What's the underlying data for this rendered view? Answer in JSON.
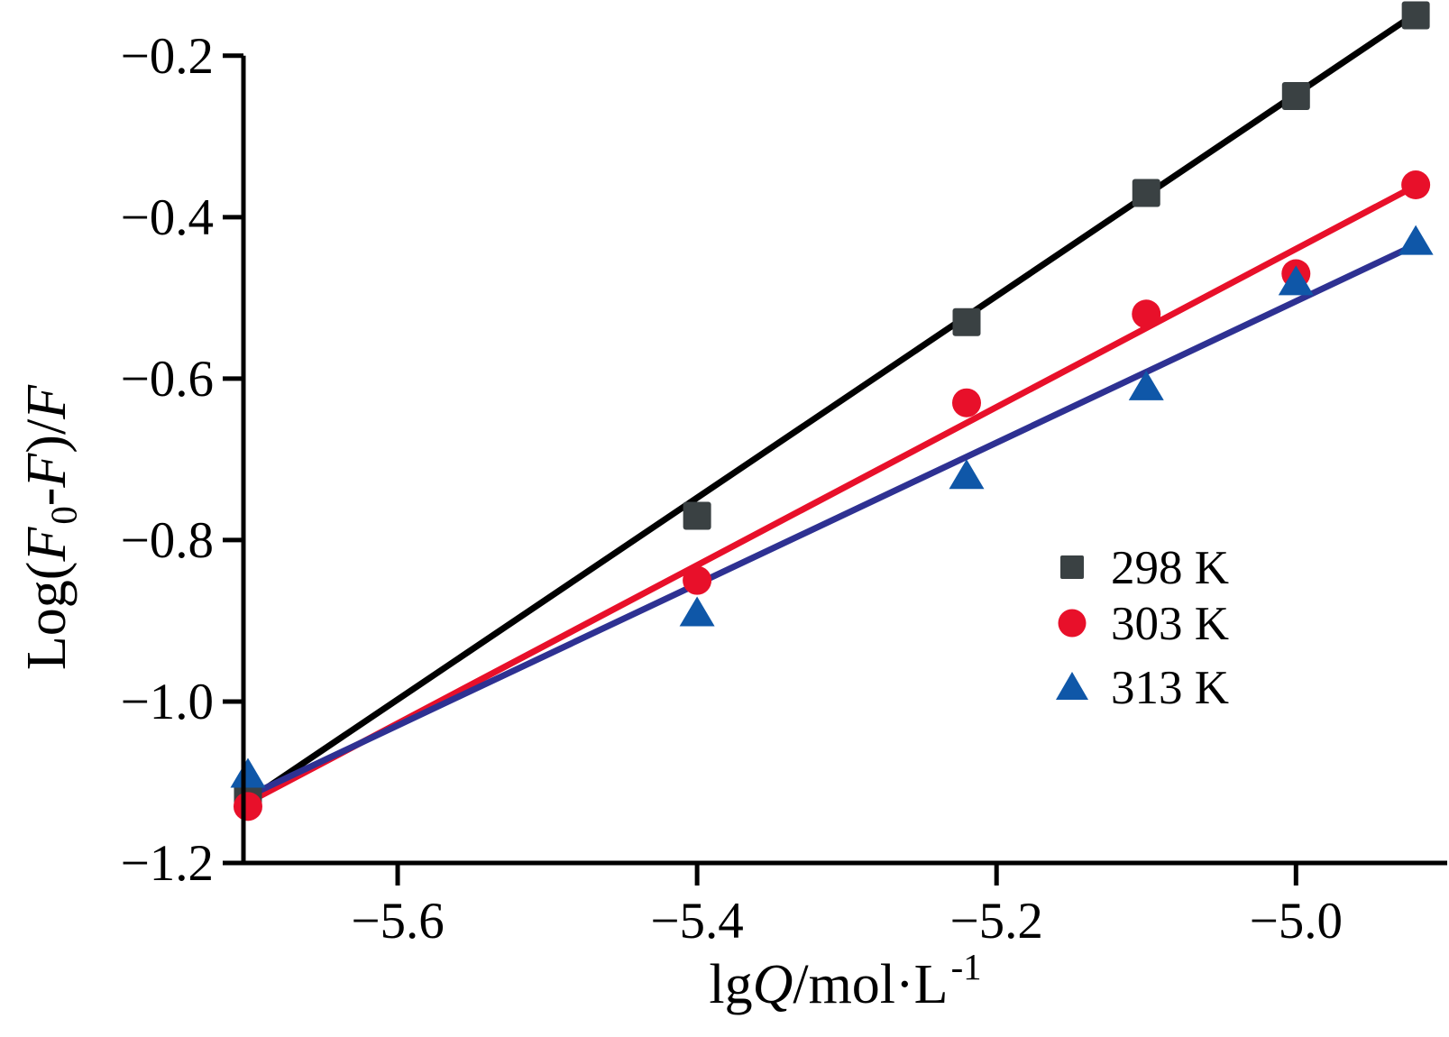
{
  "figure": {
    "background": "#ffffff",
    "title": ""
  },
  "chart_data": {
    "type": "scatter",
    "title": "",
    "xlabel": "lgQ/mol·L⁻¹",
    "ylabel": "Log(F0-F)/F",
    "xlabel_parts": [
      {
        "t": "lg"
      },
      {
        "t": "Q",
        "i": true
      },
      {
        "t": "/mol·L"
      },
      {
        "t": "-1",
        "script": "sup"
      }
    ],
    "ylabel_parts": [
      {
        "t": "Log("
      },
      {
        "t": "F",
        "i": true
      },
      {
        "t": "0",
        "script": "sub"
      },
      {
        "t": "-"
      },
      {
        "t": "F",
        "i": true
      },
      {
        "t": ")/"
      },
      {
        "t": "F",
        "i": true
      }
    ],
    "x_ticks": [
      -5.6,
      -5.4,
      -5.2,
      -5.0
    ],
    "y_ticks": [
      -0.2,
      -0.4,
      -0.6,
      -0.8,
      -1.0,
      -1.2
    ],
    "xlim": [
      -5.703,
      -4.899
    ],
    "ylim": [
      -1.2,
      -0.131
    ],
    "grid": false,
    "legend_position": "right-center",
    "axis_color": "#000000",
    "series": [
      {
        "name": "298 K",
        "marker": "square",
        "marker_color": "#3a4143",
        "line_color": "#000000",
        "x": [
          -5.7,
          -5.4,
          -5.22,
          -5.1,
          -5.0,
          -4.92
        ],
        "y": [
          -1.12,
          -0.77,
          -0.53,
          -0.37,
          -0.25,
          -0.15
        ],
        "fit_line": {
          "x1": -5.702,
          "y1": -1.125,
          "x2": -4.921,
          "y2": -0.149
        }
      },
      {
        "name": "303 K",
        "marker": "circle",
        "marker_color": "#e8102a",
        "line_color": "#e8102a",
        "x": [
          -5.7,
          -5.4,
          -5.22,
          -5.1,
          -5.0,
          -4.92
        ],
        "y": [
          -1.13,
          -0.85,
          -0.63,
          -0.52,
          -0.47,
          -0.36
        ],
        "fit_line": {
          "x1": -5.702,
          "y1": -1.127,
          "x2": -4.921,
          "y2": -0.362
        }
      },
      {
        "name": "313 K",
        "marker": "triangle",
        "marker_color": "#0f57a8",
        "line_color": "#2e3192",
        "x": [
          -5.7,
          -5.4,
          -5.22,
          -5.1,
          -5.0,
          -4.92
        ],
        "y": [
          -1.09,
          -0.89,
          -0.72,
          -0.61,
          -0.48,
          -0.43
        ],
        "fit_line": {
          "x1": -5.702,
          "y1": -1.119,
          "x2": -4.921,
          "y2": -0.435
        }
      }
    ]
  }
}
